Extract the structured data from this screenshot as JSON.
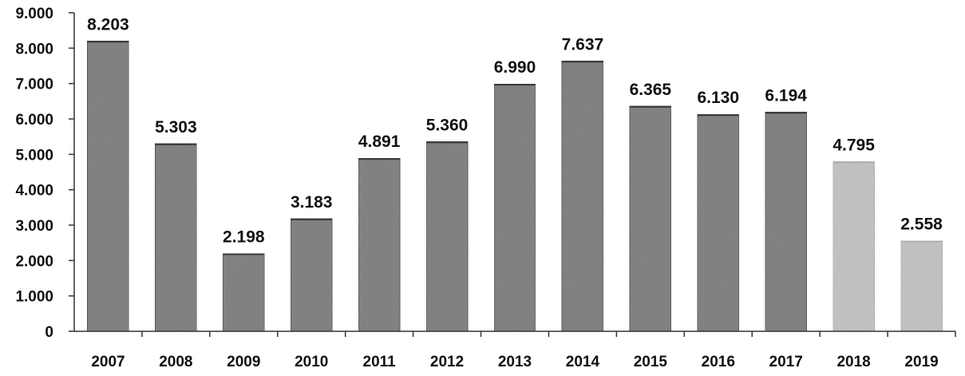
{
  "chart_data": {
    "type": "bar",
    "title": "",
    "xlabel": "",
    "ylabel": "",
    "ylim": [
      0,
      9000
    ],
    "y_ticks": [
      {
        "value": 0,
        "label": "0"
      },
      {
        "value": 1000,
        "label": "1.000"
      },
      {
        "value": 2000,
        "label": "2.000"
      },
      {
        "value": 3000,
        "label": "3.000"
      },
      {
        "value": 4000,
        "label": "4.000"
      },
      {
        "value": 5000,
        "label": "5.000"
      },
      {
        "value": 6000,
        "label": "6.000"
      },
      {
        "value": 7000,
        "label": "7.000"
      },
      {
        "value": 8000,
        "label": "8.000"
      },
      {
        "value": 9000,
        "label": "9.000"
      }
    ],
    "grid": false,
    "legend": "none",
    "categories": [
      "2007",
      "2008",
      "2009",
      "2010",
      "2011",
      "2012",
      "2013",
      "2014",
      "2015",
      "2016",
      "2017",
      "2018",
      "2019"
    ],
    "values": [
      8203,
      5303,
      2198,
      3183,
      4891,
      5360,
      6990,
      7637,
      6365,
      6130,
      6194,
      4795,
      2558
    ],
    "value_labels": [
      "8.203",
      "5.303",
      "2.198",
      "3.183",
      "4.891",
      "5.360",
      "6.990",
      "7.637",
      "6.365",
      "6.130",
      "6.194",
      "4.795",
      "2.558"
    ],
    "colors": {
      "bar_primary": "#8a8a8a",
      "bar_light": "#cdcdcd",
      "axis": "#333333"
    },
    "light_categories": [
      "2018",
      "2019"
    ]
  }
}
